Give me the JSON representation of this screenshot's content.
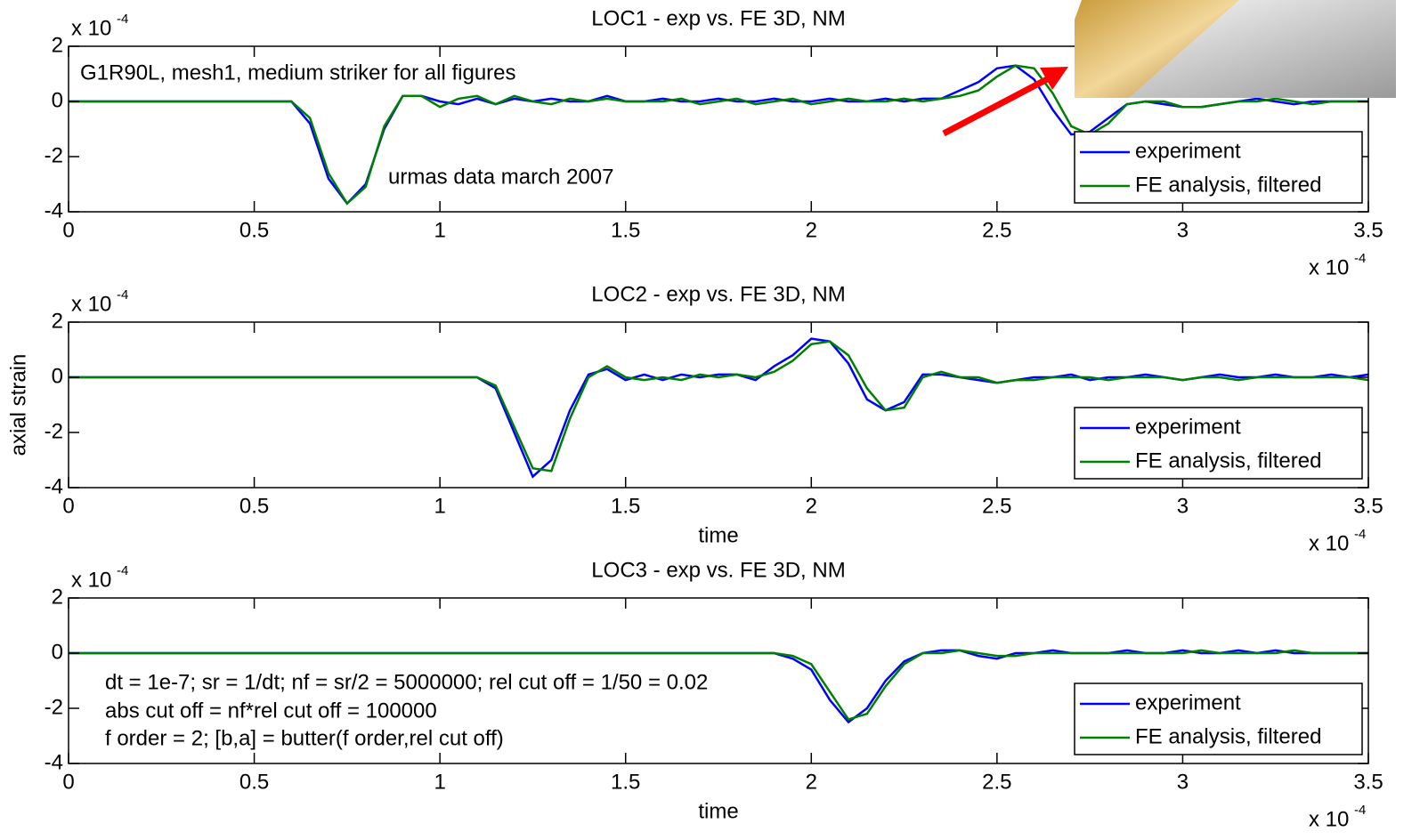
{
  "chart_data": [
    {
      "type": "line",
      "title": "LOC1 - exp vs. FE 3D, NM",
      "y_multiplier": "x 10",
      "y_multiplier_power": "-4",
      "x_multiplier": "x 10",
      "x_multiplier_power": "-4",
      "annotations": [
        "G1R90L, mesh1, medium striker for all figures",
        "urmas data march 2007"
      ],
      "x": [
        0,
        0.05,
        0.1,
        0.15,
        0.2,
        0.25,
        0.3,
        0.35,
        0.4,
        0.45,
        0.5,
        0.55,
        0.6,
        0.65,
        0.7,
        0.75,
        0.8,
        0.85,
        0.9,
        0.95,
        1,
        1.05,
        1.1,
        1.15,
        1.2,
        1.25,
        1.3,
        1.35,
        1.4,
        1.45,
        1.5,
        1.55,
        1.6,
        1.65,
        1.7,
        1.75,
        1.8,
        1.85,
        1.9,
        1.95,
        2,
        2.05,
        2.1,
        2.15,
        2.2,
        2.25,
        2.3,
        2.35,
        2.4,
        2.45,
        2.5,
        2.55,
        2.6,
        2.65,
        2.7,
        2.75,
        2.8,
        2.85,
        2.9,
        2.95,
        3,
        3.05,
        3.1,
        3.15,
        3.2,
        3.25,
        3.3,
        3.35,
        3.4,
        3.45,
        3.5
      ],
      "series": [
        {
          "name": "experiment",
          "color": "#0000ff",
          "values": [
            0,
            0,
            0,
            0,
            0,
            0,
            0,
            0,
            0,
            0,
            0,
            0,
            0,
            -0.8,
            -2.8,
            -3.7,
            -3,
            -1,
            0.2,
            0.2,
            0,
            -0.1,
            0.1,
            -0.1,
            0.1,
            0,
            0.1,
            0,
            0,
            0.2,
            0,
            0,
            0.1,
            0,
            0,
            0.1,
            0,
            0,
            0.1,
            0,
            0,
            0.1,
            0,
            0,
            0.1,
            0,
            0.1,
            0.1,
            0.4,
            0.7,
            1.2,
            1.3,
            0.8,
            -0.3,
            -1.2,
            -1.1,
            -0.6,
            -0.1,
            0,
            -0.1,
            -0.2,
            -0.2,
            -0.1,
            0,
            0.1,
            0,
            -0.1,
            0,
            0,
            0,
            0
          ]
        },
        {
          "name": "FE analysis, filtered",
          "color": "#008000",
          "values": [
            0,
            0,
            0,
            0,
            0,
            0,
            0,
            0,
            0,
            0,
            0,
            0,
            0,
            -0.6,
            -2.6,
            -3.7,
            -3.1,
            -0.9,
            0.2,
            0.2,
            -0.2,
            0.1,
            0.2,
            -0.1,
            0.2,
            0,
            -0.1,
            0.1,
            0,
            0.1,
            0,
            0,
            0,
            0.1,
            -0.1,
            0,
            0.1,
            -0.1,
            0,
            0.1,
            -0.1,
            0,
            0.1,
            0,
            0,
            0.1,
            0,
            0.1,
            0.2,
            0.4,
            0.9,
            1.3,
            1.2,
            0.3,
            -0.9,
            -1.2,
            -0.8,
            -0.1,
            0,
            0,
            -0.2,
            -0.2,
            -0.1,
            0,
            0,
            0.1,
            0,
            -0.1,
            0,
            0,
            0
          ]
        }
      ],
      "xlim": [
        0,
        3.5
      ],
      "xticks": [
        0,
        0.5,
        1,
        1.5,
        2,
        2.5,
        3,
        3.5
      ],
      "ylim": [
        -4,
        2
      ],
      "yticks": [
        -4,
        -2,
        0,
        2
      ],
      "grid": false
    },
    {
      "type": "line",
      "title": "LOC2 - exp vs. FE 3D, NM",
      "xlabel": "time",
      "ylabel": "axial strain",
      "y_multiplier": "x 10",
      "y_multiplier_power": "-4",
      "x_multiplier": "x 10",
      "x_multiplier_power": "-4",
      "x": [
        0,
        0.05,
        0.1,
        0.15,
        0.2,
        0.25,
        0.3,
        0.35,
        0.4,
        0.45,
        0.5,
        0.55,
        0.6,
        0.65,
        0.7,
        0.75,
        0.8,
        0.85,
        0.9,
        0.95,
        1,
        1.05,
        1.1,
        1.15,
        1.2,
        1.25,
        1.3,
        1.35,
        1.4,
        1.45,
        1.5,
        1.55,
        1.6,
        1.65,
        1.7,
        1.75,
        1.8,
        1.85,
        1.9,
        1.95,
        2,
        2.05,
        2.1,
        2.15,
        2.2,
        2.25,
        2.3,
        2.35,
        2.4,
        2.45,
        2.5,
        2.55,
        2.6,
        2.65,
        2.7,
        2.75,
        2.8,
        2.85,
        2.9,
        2.95,
        3,
        3.05,
        3.1,
        3.15,
        3.2,
        3.25,
        3.3,
        3.35,
        3.4,
        3.45,
        3.5
      ],
      "series": [
        {
          "name": "experiment",
          "color": "#0000ff",
          "values": [
            0,
            0,
            0,
            0,
            0,
            0,
            0,
            0,
            0,
            0,
            0,
            0,
            0,
            0,
            0,
            0,
            0,
            0,
            0,
            0,
            0,
            0,
            0,
            -0.4,
            -2,
            -3.6,
            -3,
            -1.2,
            0.1,
            0.3,
            -0.1,
            0.1,
            -0.1,
            0.1,
            0,
            0.1,
            0.1,
            -0.1,
            0.4,
            0.8,
            1.4,
            1.3,
            0.5,
            -0.8,
            -1.2,
            -0.9,
            0.1,
            0.1,
            0,
            -0.1,
            -0.2,
            -0.1,
            0,
            0,
            0.1,
            -0.1,
            0,
            0,
            0.1,
            0,
            -0.1,
            0,
            0.1,
            0,
            0,
            0.1,
            0,
            0,
            0.1,
            0,
            0.1
          ]
        },
        {
          "name": "FE analysis, filtered",
          "color": "#008000",
          "values": [
            0,
            0,
            0,
            0,
            0,
            0,
            0,
            0,
            0,
            0,
            0,
            0,
            0,
            0,
            0,
            0,
            0,
            0,
            0,
            0,
            0,
            0,
            0,
            -0.3,
            -1.8,
            -3.3,
            -3.4,
            -1.5,
            0,
            0.4,
            0,
            -0.1,
            0,
            -0.1,
            0.1,
            0,
            0.1,
            0,
            0.2,
            0.6,
            1.2,
            1.3,
            0.8,
            -0.4,
            -1.2,
            -1.1,
            0,
            0.2,
            0,
            0,
            -0.2,
            -0.1,
            -0.1,
            0,
            0,
            0,
            -0.1,
            0,
            0,
            0,
            -0.1,
            0,
            0,
            -0.1,
            0,
            0,
            0,
            0,
            0,
            0,
            -0.1
          ]
        }
      ],
      "xlim": [
        0,
        3.5
      ],
      "xticks": [
        0,
        0.5,
        1,
        1.5,
        2,
        2.5,
        3,
        3.5
      ],
      "ylim": [
        -4,
        2
      ],
      "yticks": [
        -4,
        -2,
        0,
        2
      ],
      "grid": false
    },
    {
      "type": "line",
      "title": "LOC3 - exp vs. FE 3D, NM",
      "xlabel": "time",
      "y_multiplier": "x 10",
      "y_multiplier_power": "-4",
      "x_multiplier": "x 10",
      "x_multiplier_power": "-4",
      "annotations": [
        "dt = 1e-7; sr = 1/dt; nf = sr/2 = 5000000; rel cut off = 1/50 = 0.02",
        "abs cut off = nf*rel cut off = 100000",
        "f order = 2; [b,a] = butter(f order,rel cut off)"
      ],
      "x": [
        0,
        0.05,
        0.1,
        0.15,
        0.2,
        0.25,
        0.3,
        0.35,
        0.4,
        0.45,
        0.5,
        0.55,
        0.6,
        0.65,
        0.7,
        0.75,
        0.8,
        0.85,
        0.9,
        0.95,
        1,
        1.05,
        1.1,
        1.15,
        1.2,
        1.25,
        1.3,
        1.35,
        1.4,
        1.45,
        1.5,
        1.55,
        1.6,
        1.65,
        1.7,
        1.75,
        1.8,
        1.85,
        1.9,
        1.95,
        2,
        2.05,
        2.1,
        2.15,
        2.2,
        2.25,
        2.3,
        2.35,
        2.4,
        2.45,
        2.5,
        2.55,
        2.6,
        2.65,
        2.7,
        2.75,
        2.8,
        2.85,
        2.9,
        2.95,
        3,
        3.05,
        3.1,
        3.15,
        3.2,
        3.25,
        3.3,
        3.35,
        3.4,
        3.45,
        3.5
      ],
      "series": [
        {
          "name": "experiment",
          "color": "#0000ff",
          "values": [
            0,
            0,
            0,
            0,
            0,
            0,
            0,
            0,
            0,
            0,
            0,
            0,
            0,
            0,
            0,
            0,
            0,
            0,
            0,
            0,
            0,
            0,
            0,
            0,
            0,
            0,
            0,
            0,
            0,
            0,
            0,
            0,
            0,
            0,
            0,
            0,
            0,
            0,
            0,
            -0.2,
            -0.6,
            -1.7,
            -2.5,
            -2,
            -1,
            -0.3,
            0,
            0.1,
            0.1,
            -0.1,
            -0.2,
            0,
            0,
            0.1,
            0,
            0,
            0,
            0.1,
            0,
            0,
            0.1,
            0,
            0,
            0.1,
            0,
            0.1,
            0,
            0,
            0,
            0,
            0
          ]
        },
        {
          "name": "FE analysis, filtered",
          "color": "#008000",
          "values": [
            0,
            0,
            0,
            0,
            0,
            0,
            0,
            0,
            0,
            0,
            0,
            0,
            0,
            0,
            0,
            0,
            0,
            0,
            0,
            0,
            0,
            0,
            0,
            0,
            0,
            0,
            0,
            0,
            0,
            0,
            0,
            0,
            0,
            0,
            0,
            0,
            0,
            0,
            0,
            -0.1,
            -0.4,
            -1.4,
            -2.4,
            -2.2,
            -1.2,
            -0.4,
            0,
            0,
            0.1,
            0,
            -0.1,
            -0.1,
            0,
            0,
            0,
            0,
            0,
            0,
            0,
            0,
            0,
            0.1,
            0,
            0,
            0,
            0,
            0.1,
            0,
            0,
            0,
            0
          ]
        }
      ],
      "xlim": [
        0,
        3.5
      ],
      "xticks": [
        0,
        0.5,
        1,
        1.5,
        2,
        2.5,
        3,
        3.5
      ],
      "ylim": [
        -4,
        2
      ],
      "yticks": [
        -4,
        -2,
        0,
        2
      ],
      "grid": false
    }
  ]
}
